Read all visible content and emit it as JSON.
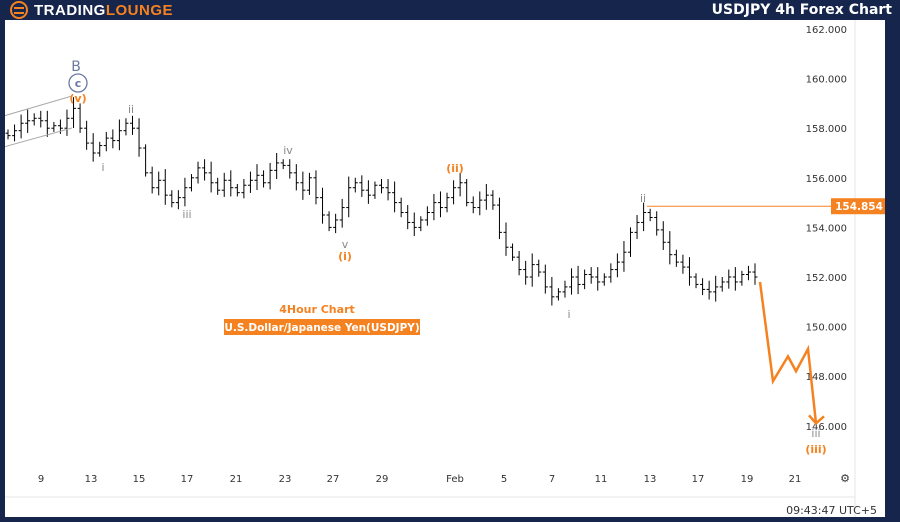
{
  "header": {
    "logo_text_1": "TRADING",
    "logo_text_2": "LOUNGE",
    "title": "USDJPY 4h Forex Chart"
  },
  "footer": {
    "time": "09:43:47 UTC+5",
    "settings_icon": "gear-icon"
  },
  "annotation": {
    "subtitle": "4Hour Chart",
    "instrument": "U.S.Dollar/Japanese Yen(USDJPY)"
  },
  "colors": {
    "accent": "#f58220",
    "header": "#16254b",
    "bars": "#000000",
    "wave_gray": "#888888",
    "wave_blue": "#6b7aa6"
  },
  "chart_data": {
    "type": "ohlc",
    "title": "USDJPY 4h Forex Chart",
    "ylim": [
      145.0,
      162.8
    ],
    "yticks": [
      "162.000",
      "160.000",
      "158.000",
      "156.000",
      "154.000",
      "152.000",
      "150.000",
      "148.000",
      "146.000"
    ],
    "xticks": [
      "9",
      "13",
      "15",
      "17",
      "21",
      "23",
      "27",
      "29",
      "Feb",
      "5",
      "7",
      "11",
      "13",
      "17",
      "19",
      "21"
    ],
    "closes": [
      157.7,
      157.9,
      158.2,
      158.3,
      158.4,
      158.3,
      158.0,
      158.1,
      158.0,
      158.4,
      158.8,
      158.0,
      157.4,
      157.0,
      157.3,
      157.6,
      157.5,
      157.9,
      158.2,
      158.0,
      157.2,
      156.2,
      155.6,
      155.9,
      155.3,
      155.0,
      155.2,
      155.6,
      156.0,
      156.4,
      156.2,
      155.8,
      155.5,
      155.9,
      155.6,
      155.4,
      155.7,
      155.9,
      156.1,
      155.8,
      156.3,
      156.6,
      156.5,
      156.2,
      155.8,
      155.5,
      156.0,
      155.2,
      154.5,
      154.0,
      154.3,
      154.8,
      155.6,
      155.8,
      155.5,
      155.3,
      155.7,
      155.6,
      155.4,
      155.0,
      154.6,
      154.2,
      154.0,
      154.3,
      154.6,
      155.0,
      154.8,
      155.2,
      155.6,
      155.8,
      155.0,
      154.8,
      155.1,
      155.3,
      154.9,
      153.8,
      153.2,
      152.8,
      152.3,
      152.0,
      152.5,
      152.2,
      151.6,
      151.2,
      151.4,
      151.6,
      152.0,
      151.7,
      152.1,
      152.0,
      151.8,
      152.0,
      152.3,
      152.6,
      153.0,
      153.8,
      154.2,
      154.6,
      154.4,
      153.9,
      153.4,
      152.9,
      152.6,
      152.4,
      152.0,
      151.7,
      151.5,
      151.4,
      151.6,
      151.8,
      152.0,
      151.8,
      152.1,
      152.2,
      152.0
    ],
    "price_level": {
      "value": 154.854,
      "label": "154.854"
    },
    "projection": [
      151.8,
      147.8,
      148.8,
      148.2,
      149.1,
      146.1
    ],
    "wave_labels": {
      "B": "B",
      "c": "c",
      "v_paren": "(v)",
      "ii_1": "ii",
      "i_1": "i",
      "iii_1": "iii",
      "iv": "iv",
      "v": "v",
      "i_paren": "(i)",
      "ii_paren": "(ii)",
      "i_2": "i",
      "ii_2": "ii",
      "iii_2": "iii",
      "iii_paren": "(iii)"
    }
  }
}
